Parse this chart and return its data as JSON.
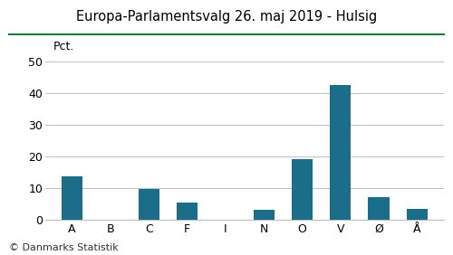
{
  "title": "Europa-Parlamentsvalg 26. maj 2019 - Hulsig",
  "categories": [
    "A",
    "B",
    "C",
    "F",
    "I",
    "N",
    "O",
    "V",
    "Ø",
    "Å"
  ],
  "values": [
    13.5,
    0.0,
    9.5,
    5.3,
    0.0,
    3.0,
    19.0,
    42.5,
    7.0,
    3.2
  ],
  "bar_color": "#1a6e8a",
  "ylabel": "Pct.",
  "ylim": [
    0,
    55
  ],
  "yticks": [
    0,
    10,
    20,
    30,
    40,
    50
  ],
  "footer": "© Danmarks Statistik",
  "title_color": "#000000",
  "bg_color": "#ffffff",
  "grid_color": "#c0c0c0",
  "title_line_color": "#1a7a3a",
  "footer_fontsize": 8,
  "title_fontsize": 10.5,
  "tick_fontsize": 9,
  "bar_width": 0.55
}
